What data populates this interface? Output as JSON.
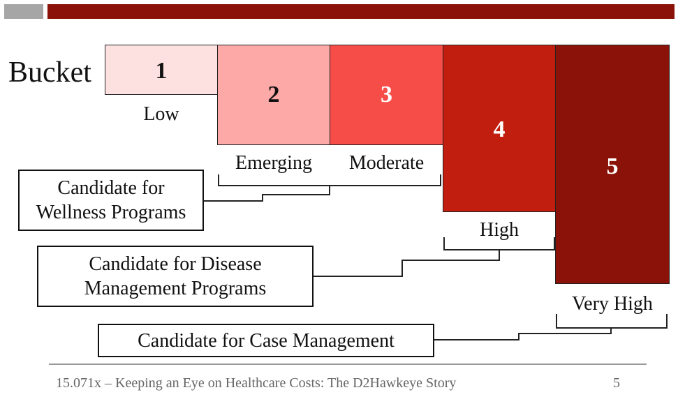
{
  "slide": {
    "heading": "Bucket",
    "footer": "15.071x – Keeping an Eye on Healthcare Costs: The D2Hawkeye Story",
    "page_number": "5"
  },
  "buckets": [
    {
      "number": "1",
      "label": "Low",
      "color": "#fde0e0",
      "number_color": "#111111"
    },
    {
      "number": "2",
      "label": "Emerging",
      "color": "#fca9a8",
      "number_color": "#111111"
    },
    {
      "number": "3",
      "label": "Moderate",
      "color": "#f74d48",
      "number_color": "#ffffff"
    },
    {
      "number": "4",
      "label": "High",
      "color": "#c21e10",
      "number_color": "#ffffff"
    },
    {
      "number": "5",
      "label": "Very High",
      "color": "#8b1208",
      "number_color": "#ffffff"
    }
  ],
  "candidates": {
    "wellness": "Candidate for\nWellness Programs",
    "disease": "Candidate for Disease\nManagement Programs",
    "case": "Candidate for Case Management"
  },
  "colors": {
    "accent_gray": "#a6a6a6",
    "accent_red": "#8b1208"
  }
}
